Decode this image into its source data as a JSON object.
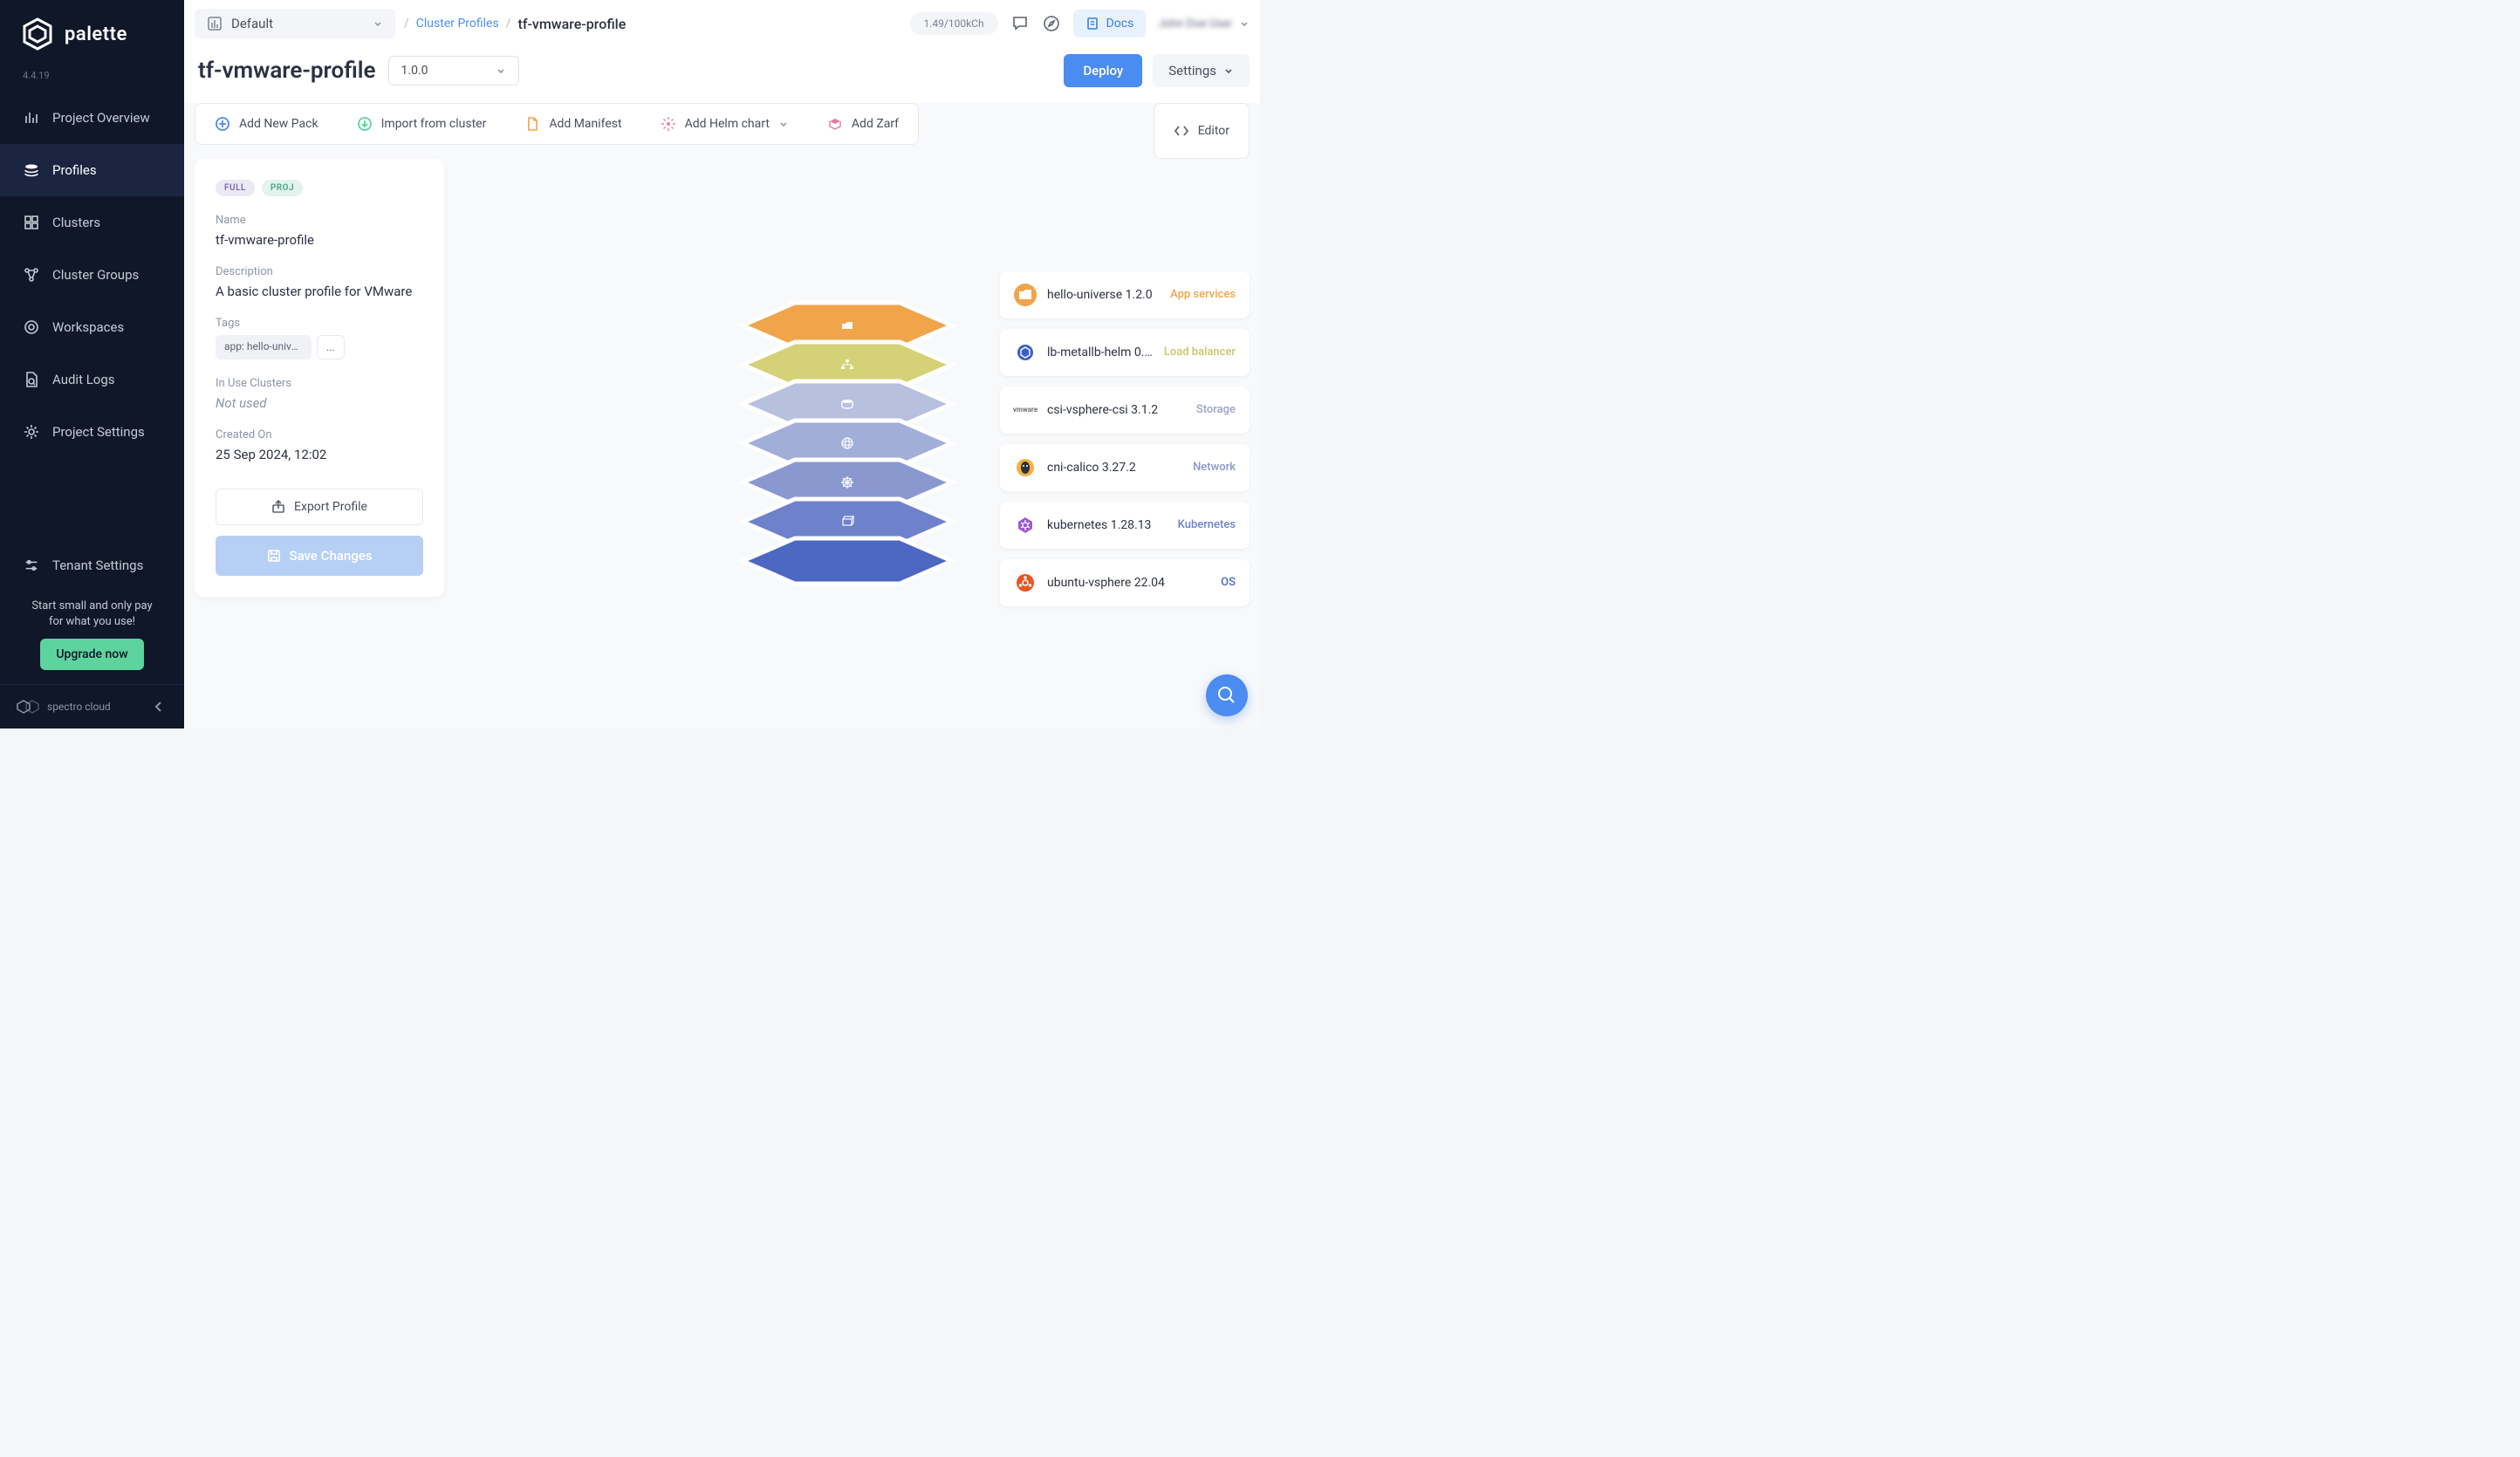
{
  "brand": {
    "name": "palette",
    "version": "4.4.19",
    "footer": "spectro cloud"
  },
  "sidebar": {
    "items": [
      {
        "label": "Project Overview",
        "icon": "bars"
      },
      {
        "label": "Profiles",
        "icon": "layers",
        "active": true
      },
      {
        "label": "Clusters",
        "icon": "grid"
      },
      {
        "label": "Cluster Groups",
        "icon": "nodes"
      },
      {
        "label": "Workspaces",
        "icon": "target"
      },
      {
        "label": "Audit Logs",
        "icon": "file"
      },
      {
        "label": "Project Settings",
        "icon": "gear"
      }
    ],
    "tenant_label": "Tenant Settings",
    "upgrade_text_1": "Start small and only pay",
    "upgrade_text_2": "for what you use!",
    "upgrade_btn": "Upgrade now"
  },
  "topbar": {
    "project_label": "Default",
    "breadcrumb_link": "Cluster Profiles",
    "breadcrumb_current": "tf-vmware-profile",
    "usage": "1.49/100kCh",
    "docs_label": "Docs",
    "user_name": "John Doe User"
  },
  "page": {
    "title": "tf-vmware-profile",
    "version": "1.0.0",
    "deploy_label": "Deploy",
    "settings_label": "Settings"
  },
  "actions": {
    "add_pack": "Add New Pack",
    "import_cluster": "Import from cluster",
    "add_manifest": "Add Manifest",
    "add_helm": "Add Helm chart",
    "add_zarf": "Add Zarf",
    "editor": "Editor"
  },
  "info": {
    "badge_full": "FULL",
    "badge_proj": "PROJ",
    "name_label": "Name",
    "name_value": "tf-vmware-profile",
    "desc_label": "Description",
    "desc_value": "A basic cluster profile for VMware",
    "tags_label": "Tags",
    "tag_1": "app: hello-univer...",
    "tag_more": "...",
    "inuse_label": "In Use Clusters",
    "inuse_value": "Not used",
    "created_label": "Created On",
    "created_value": "25 Sep 2024, 12:02",
    "export_label": "Export Profile",
    "save_label": "Save Changes"
  },
  "layers": [
    {
      "name": "hello-universe 1.2.0",
      "type": "App services",
      "color": "#f0a54a",
      "icon_bg": "#f0a54a",
      "icon": "folder"
    },
    {
      "name": "lb-metallb-helm 0.1...",
      "type": "Load balancer",
      "color": "#c8c766",
      "icon_bg": "#ffffff",
      "icon": "metallb"
    },
    {
      "name": "csi-vsphere-csi 3.1.2",
      "type": "Storage",
      "color": "#9ba5c9",
      "icon_bg": "#ffffff",
      "icon": "vmware"
    },
    {
      "name": "cni-calico 3.27.2",
      "type": "Network",
      "color": "#8a98cc",
      "icon_bg": "#ffffff",
      "icon": "calico"
    },
    {
      "name": "kubernetes 1.28.13",
      "type": "Kubernetes",
      "color": "#6f82c8",
      "icon_bg": "#ffffff",
      "icon": "k8s"
    },
    {
      "name": "ubuntu-vsphere 22.04",
      "type": "OS",
      "color": "#4d68c2",
      "icon_bg": "#ffffff",
      "icon": "ubuntu"
    }
  ],
  "layer_type_colors": {
    "App services": "#f0a54a",
    "Load balancer": "#c8c766",
    "Storage": "#9ba5c9",
    "Network": "#8a98cc",
    "Kubernetes": "#6f82c8",
    "OS": "#4d68c2"
  },
  "stack_colors": [
    "#f0a54a",
    "#d4d177",
    "#b7c0de",
    "#a1aed8",
    "#8a98d0",
    "#6e82cb",
    "#4d68c2"
  ],
  "stack_icons": [
    "folder",
    "sitemap",
    "disk",
    "globe",
    "helm",
    "cube"
  ]
}
